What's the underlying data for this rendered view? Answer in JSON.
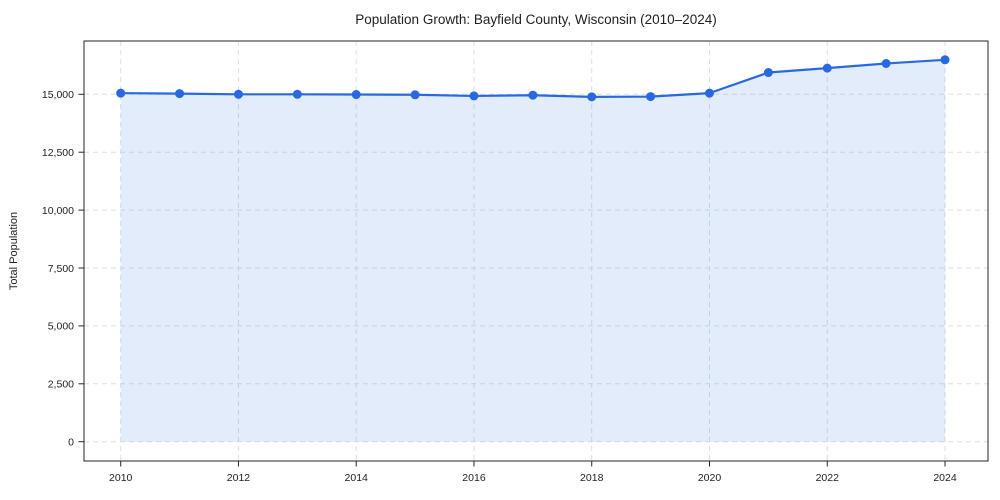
{
  "chart_data": {
    "type": "line",
    "title": "Population Growth: Bayfield County, Wisconsin (2010–2024)",
    "xlabel": "",
    "ylabel": "Total Population",
    "x": [
      2010,
      2011,
      2012,
      2013,
      2014,
      2015,
      2016,
      2017,
      2018,
      2019,
      2020,
      2021,
      2022,
      2023,
      2024
    ],
    "series": [
      {
        "name": "Total Population",
        "values": [
          15050,
          15030,
          15000,
          15000,
          14990,
          14980,
          14930,
          14960,
          14890,
          14900,
          15050,
          15940,
          16130,
          16330,
          16490
        ]
      }
    ],
    "xticks": {
      "values": [
        2010,
        2012,
        2014,
        2016,
        2018,
        2020,
        2022,
        2024
      ],
      "labels": [
        "2010",
        "2012",
        "2014",
        "2016",
        "2018",
        "2020",
        "2022",
        "2024"
      ]
    },
    "yticks": {
      "values": [
        0,
        2500,
        5000,
        7500,
        10000,
        12500,
        15000
      ],
      "labels": [
        "0",
        "2,500",
        "5,000",
        "7,500",
        "10,000",
        "12,500",
        "15,000"
      ]
    },
    "xlim": [
      2009.4,
      2024.7
    ],
    "ylim": [
      -790,
      17300
    ],
    "grid": {
      "show": true,
      "style": "dashed"
    },
    "legend": {
      "show": false
    },
    "area_fill": true,
    "fill_baseline": 0,
    "style": {
      "line_color": "#2869e1",
      "marker_color": "#2869e1",
      "fill_color": "rgba(40, 105, 225, 0.13)",
      "grid_color": "#dcdfe5",
      "axis_color": "#262626",
      "text_color": "#1f1f1f",
      "background": "#ffffff",
      "marker": "circle"
    }
  }
}
